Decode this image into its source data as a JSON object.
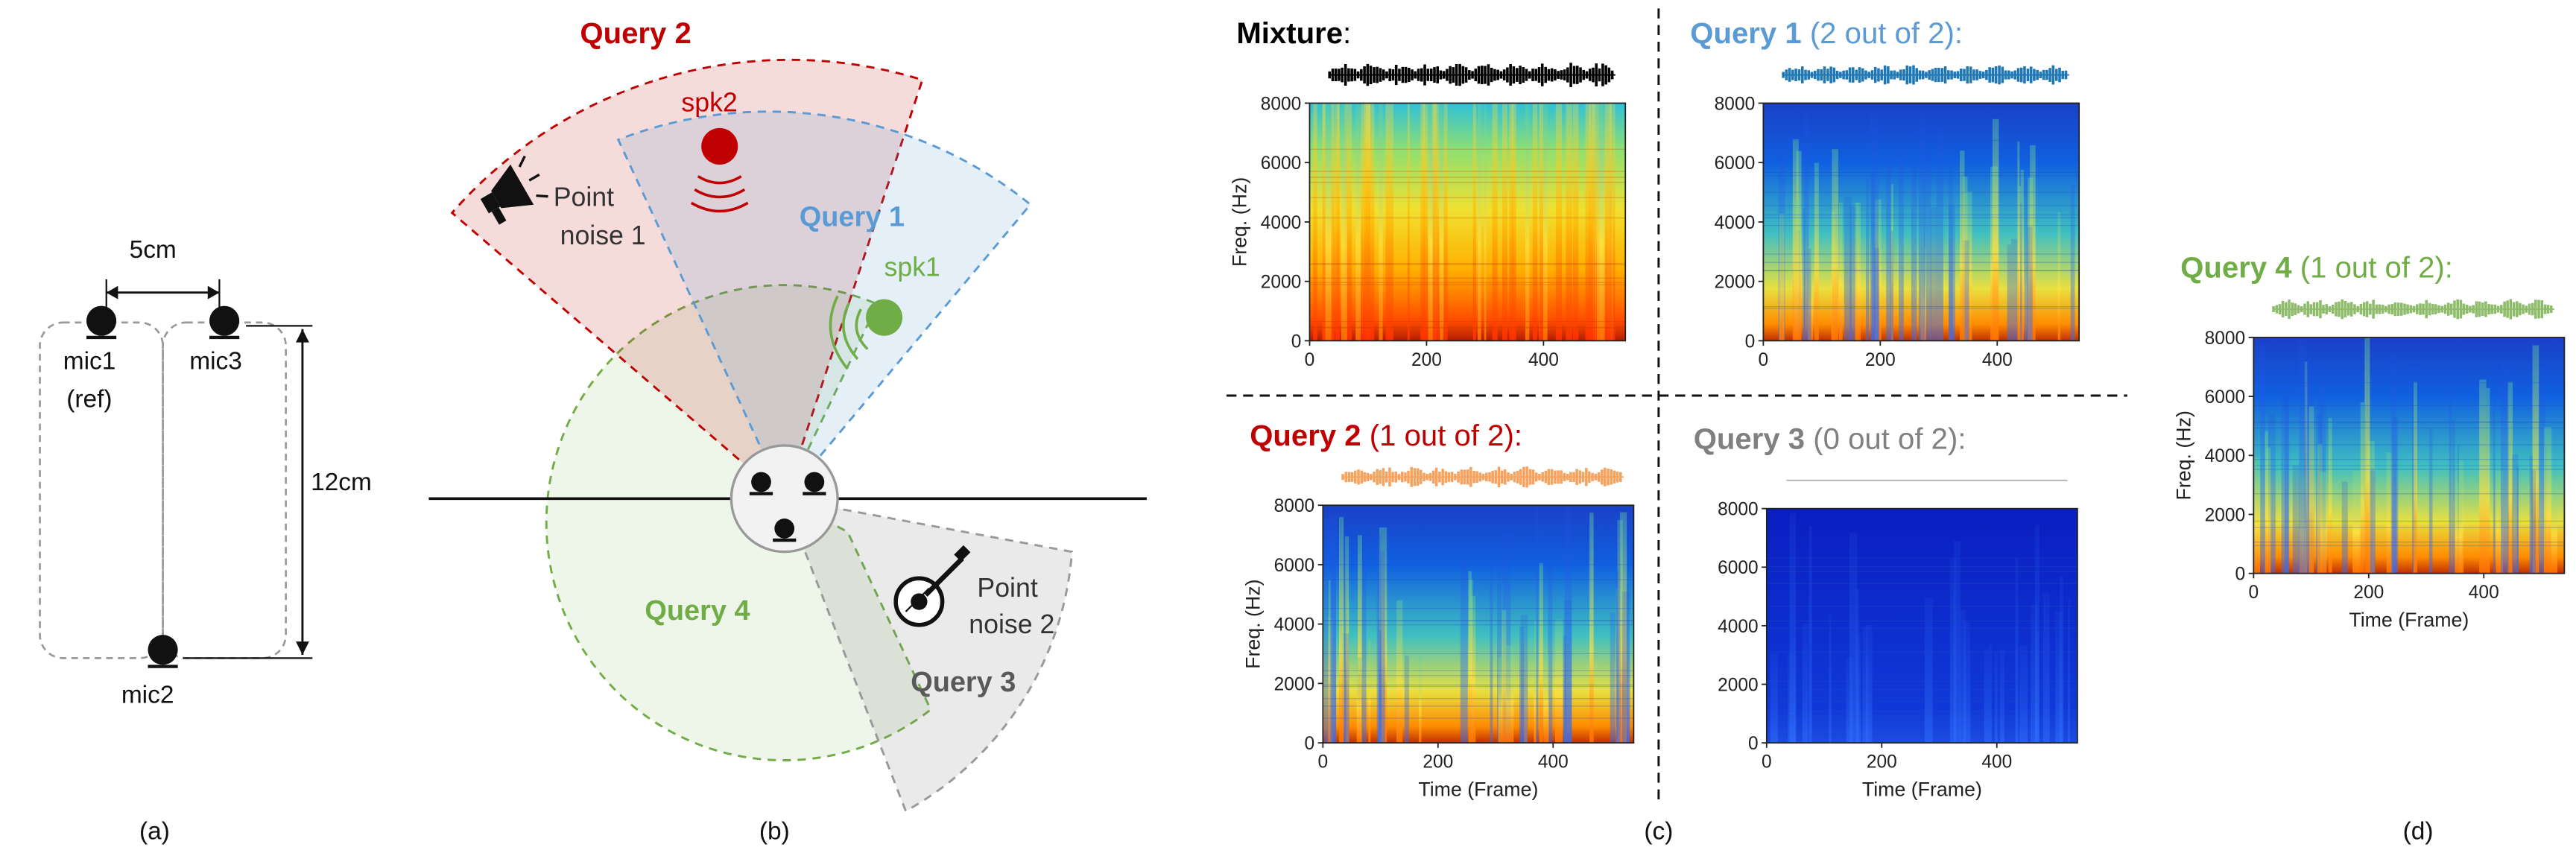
{
  "panel_a": {
    "mics": [
      "mic1",
      "mic3",
      "mic2"
    ],
    "ref_label": "(ref)",
    "width_label": "5cm",
    "height_label": "12cm",
    "caption": "(a)"
  },
  "panel_b": {
    "caption": "(b)",
    "queries": [
      {
        "label": "Query 1",
        "color": "#5a9bd5"
      },
      {
        "label": "Query 2",
        "color": "#c00000"
      },
      {
        "label": "Query 3",
        "color": "#595959"
      },
      {
        "label": "Query 4",
        "color": "#70ad47"
      }
    ],
    "speakers": [
      {
        "label": "spk1",
        "color": "#70ad47"
      },
      {
        "label": "spk2",
        "color": "#c00000"
      }
    ],
    "noises": [
      {
        "line1": "Point",
        "line2": "noise 1",
        "icon": "megaphone-icon"
      },
      {
        "line1": "Point",
        "line2": "noise 2",
        "icon": "banjo-icon"
      }
    ]
  },
  "panel_c": {
    "caption": "(c)",
    "panels": [
      {
        "title": "Mixture",
        "suffix": ":",
        "title_color": "#000000",
        "suffix_color": "#000000",
        "wave_color": "#000000",
        "intensity": "high"
      },
      {
        "title": "Query 1",
        "suffix": " (2 out of 2):",
        "title_color": "#5a9bd5",
        "suffix_color": "#5a9bd5",
        "wave_color": "#1f77b4",
        "intensity": "mid"
      },
      {
        "title": "Query 2",
        "suffix": " (1 out of 2):",
        "title_color": "#c00000",
        "suffix_color": "#c00000",
        "wave_color": "#f4a460",
        "intensity": "mid"
      },
      {
        "title": "Query 3",
        "suffix": " (0 out of 2):",
        "title_color": "#808080",
        "suffix_color": "#808080",
        "wave_color": "#aaaaaa",
        "intensity": "none"
      }
    ],
    "ylabel": "Freq. (Hz)",
    "xlabel": "Time (Frame)",
    "yticks": [
      "0",
      "2000",
      "4000",
      "6000",
      "8000"
    ],
    "xticks": [
      "0",
      "200",
      "400"
    ]
  },
  "panel_d": {
    "caption": "(d)",
    "title": "Query 4",
    "suffix": " (1 out of 2):",
    "title_color": "#70ad47",
    "wave_color": "#8fbc6b",
    "intensity": "mid",
    "ylabel": "Freq. (Hz)",
    "xlabel": "Time (Frame)",
    "yticks": [
      "0",
      "2000",
      "4000",
      "6000",
      "8000"
    ],
    "xticks": [
      "0",
      "200",
      "400"
    ]
  }
}
